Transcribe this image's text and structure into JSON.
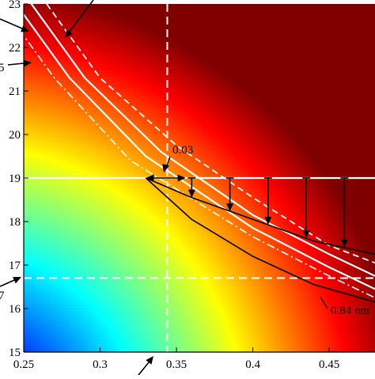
{
  "chart_data": {
    "type": "heatmap",
    "colormap": "jet",
    "xlim": [
      0.25,
      0.48
    ],
    "ylim": [
      15,
      23
    ],
    "x_ticks": [
      "0.25",
      "0.3",
      "0.35",
      "0.4",
      "0.45"
    ],
    "y_ticks": [
      "15",
      "16",
      "17",
      "18",
      "19",
      "20",
      "21",
      "22",
      "23"
    ],
    "axes_box": "left and bottom axes with ticks",
    "reference_lines": {
      "horizontal_solid_y": 19,
      "horizontal_dashed_y": 16.7,
      "vertical_dashed_x": 0.344
    },
    "isolines": [
      {
        "style": "dashed",
        "points": [
          [
            0.265,
            23.0
          ],
          [
            0.3,
            21.3
          ],
          [
            0.35,
            19.75
          ],
          [
            0.4,
            18.55
          ],
          [
            0.45,
            17.45
          ],
          [
            0.48,
            17.05
          ]
        ]
      },
      {
        "style": "solid",
        "points": [
          [
            0.255,
            23.0
          ],
          [
            0.29,
            21.3
          ],
          [
            0.34,
            19.6
          ],
          [
            0.4,
            18.15
          ],
          [
            0.45,
            17.25
          ],
          [
            0.48,
            16.75
          ]
        ]
      },
      {
        "style": "solid",
        "points": [
          [
            0.245,
            23.0
          ],
          [
            0.28,
            21.3
          ],
          [
            0.33,
            19.5
          ],
          [
            0.4,
            17.85
          ],
          [
            0.45,
            16.95
          ],
          [
            0.48,
            16.45
          ]
        ]
      },
      {
        "style": "dash-dot",
        "points": [
          [
            0.235,
            23.0
          ],
          [
            0.27,
            21.3
          ],
          [
            0.32,
            19.4
          ],
          [
            0.4,
            17.65
          ],
          [
            0.45,
            16.75
          ],
          [
            0.48,
            16.25
          ]
        ]
      }
    ],
    "shifted_curves": [
      {
        "points": [
          [
            0.33,
            19.0
          ],
          [
            0.36,
            18.55
          ],
          [
            0.4,
            18.05
          ],
          [
            0.44,
            17.55
          ],
          [
            0.48,
            17.25
          ]
        ]
      },
      {
        "points": [
          [
            0.33,
            19.0
          ],
          [
            0.36,
            18.05
          ],
          [
            0.4,
            17.2
          ],
          [
            0.44,
            16.55
          ],
          [
            0.48,
            16.15
          ]
        ]
      }
    ],
    "shift_arrows_x": [
      0.36,
      0.385,
      0.41,
      0.435,
      0.46
    ],
    "annotations": [
      {
        "text": "0.03"
      },
      {
        "text": "0.84 nm"
      }
    ],
    "edge_labels": {
      "left_upper": "5",
      "left_lower": "7"
    }
  }
}
